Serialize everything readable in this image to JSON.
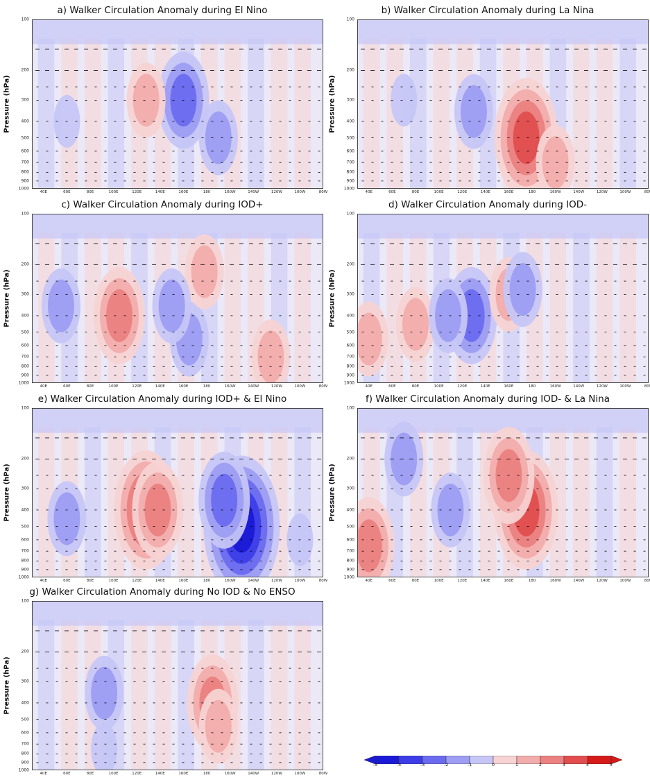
{
  "y_axis_label": "Pressure (hPa)",
  "pressure_ticks": [
    "100",
    "200",
    "300",
    "400",
    "500",
    "600",
    "700",
    "800",
    "900",
    "1000"
  ],
  "longitude_ticks": [
    "40E",
    "60E",
    "80E",
    "100E",
    "120E",
    "140E",
    "160E",
    "180",
    "160W",
    "140W",
    "120W",
    "100W",
    "80W"
  ],
  "colors": {
    "neg5": "#1a1ad6",
    "neg4": "#3d3de8",
    "neg3": "#6b6bef",
    "neg2": "#9d9df3",
    "neg1": "#c6c6f7",
    "zero": "#ebe8f7",
    "pos1": "#f7d3d3",
    "pos2": "#f2acac",
    "pos3": "#eb8181",
    "pos4": "#e24e4e",
    "pos5": "#d61a1a",
    "vector": "#000000"
  },
  "colorbar": {
    "labels": [
      "-5",
      "-4",
      "-3",
      "-2",
      "-1",
      "0",
      "1",
      "2",
      "3",
      "4",
      "5"
    ]
  },
  "chart_data": [
    {
      "type": "heatmap",
      "title": "a) Walker Circulation Anomaly during El Nino",
      "ylabel": "Pressure (hPa)",
      "xlabel": "",
      "x_range": [
        "30E",
        "80W"
      ],
      "y_range": [
        1000,
        100
      ],
      "y_scale": "log",
      "anomaly_regions": [
        {
          "sign": "neg",
          "level": 3,
          "lon_center": "160E",
          "pressure_center": 300,
          "note": "strong negative core"
        },
        {
          "sign": "neg",
          "level": 2,
          "lon_center": "170W",
          "pressure_center": 500
        },
        {
          "sign": "neg",
          "level": 1,
          "lon_center": "60E",
          "pressure_center": 400
        },
        {
          "sign": "pos",
          "level": 2,
          "lon_center": "128E",
          "pressure_center": 300
        }
      ]
    },
    {
      "type": "heatmap",
      "title": "b) Walker Circulation Anomaly during La Nina",
      "ylabel": "Pressure (hPa)",
      "xlabel": "",
      "x_range": [
        "30E",
        "80W"
      ],
      "y_range": [
        1000,
        100
      ],
      "y_scale": "log",
      "anomaly_regions": [
        {
          "sign": "pos",
          "level": 4,
          "lon_center": "175E",
          "pressure_center": 500,
          "note": "strong positive core"
        },
        {
          "sign": "pos",
          "level": 2,
          "lon_center": "160W",
          "pressure_center": 700
        },
        {
          "sign": "neg",
          "level": 2,
          "lon_center": "130E",
          "pressure_center": 350
        },
        {
          "sign": "neg",
          "level": 1,
          "lon_center": "70E",
          "pressure_center": 300
        }
      ]
    },
    {
      "type": "heatmap",
      "title": "c) Walker Circulation Anomaly during IOD+",
      "ylabel": "Pressure (hPa)",
      "xlabel": "",
      "x_range": [
        "30E",
        "80W"
      ],
      "y_range": [
        1000,
        100
      ],
      "y_scale": "log",
      "anomaly_regions": [
        {
          "sign": "neg",
          "level": 2,
          "lon_center": "55E",
          "pressure_center": 350
        },
        {
          "sign": "pos",
          "level": 3,
          "lon_center": "105E",
          "pressure_center": 400
        },
        {
          "sign": "neg",
          "level": 2,
          "lon_center": "165E",
          "pressure_center": 550
        },
        {
          "sign": "pos",
          "level": 2,
          "lon_center": "178E",
          "pressure_center": 220
        },
        {
          "sign": "neg",
          "level": 2,
          "lon_center": "150E",
          "pressure_center": 350
        },
        {
          "sign": "pos",
          "level": 2,
          "lon_center": "125W",
          "pressure_center": 700
        }
      ]
    },
    {
      "type": "heatmap",
      "title": "d) Walker Circulation Anomaly during IOD-",
      "ylabel": "Pressure (hPa)",
      "xlabel": "",
      "x_range": [
        "30E",
        "80W"
      ],
      "y_range": [
        1000,
        100
      ],
      "y_scale": "log",
      "anomaly_regions": [
        {
          "sign": "pos",
          "level": 2,
          "lon_center": "80E",
          "pressure_center": 450
        },
        {
          "sign": "pos",
          "level": 2,
          "lon_center": "40E",
          "pressure_center": 550
        },
        {
          "sign": "neg",
          "level": 3,
          "lon_center": "128E",
          "pressure_center": 400
        },
        {
          "sign": "neg",
          "level": 2,
          "lon_center": "108E",
          "pressure_center": 400
        },
        {
          "sign": "pos",
          "level": 2,
          "lon_center": "160E",
          "pressure_center": 300
        },
        {
          "sign": "neg",
          "level": 2,
          "lon_center": "172E",
          "pressure_center": 280
        }
      ]
    },
    {
      "type": "heatmap",
      "title": "e) Walker Circulation Anomaly during IOD+ & El Nino",
      "ylabel": "Pressure (hPa)",
      "xlabel": "",
      "x_range": [
        "30E",
        "80W"
      ],
      "y_range": [
        1000,
        100
      ],
      "y_scale": "log",
      "anomaly_regions": [
        {
          "sign": "neg",
          "level": 5,
          "lon_center": "150W",
          "pressure_center": 500,
          "note": "strongest negative core"
        },
        {
          "sign": "neg",
          "level": 3,
          "lon_center": "165W",
          "pressure_center": 350
        },
        {
          "sign": "pos",
          "level": 4,
          "lon_center": "128E",
          "pressure_center": 400
        },
        {
          "sign": "pos",
          "level": 3,
          "lon_center": "138E",
          "pressure_center": 400
        },
        {
          "sign": "neg",
          "level": 2,
          "lon_center": "60E",
          "pressure_center": 450
        },
        {
          "sign": "neg",
          "level": 1,
          "lon_center": "100W",
          "pressure_center": 600
        }
      ]
    },
    {
      "type": "heatmap",
      "title": "f) Walker Circulation Anomaly during IOD- & La Nina",
      "ylabel": "Pressure (hPa)",
      "xlabel": "",
      "x_range": [
        "30E",
        "80W"
      ],
      "y_range": [
        1000,
        100
      ],
      "y_scale": "log",
      "anomaly_regions": [
        {
          "sign": "pos",
          "level": 4,
          "lon_center": "175E",
          "pressure_center": 400,
          "note": "positive core"
        },
        {
          "sign": "pos",
          "level": 3,
          "lon_center": "160E",
          "pressure_center": 250
        },
        {
          "sign": "pos",
          "level": 3,
          "lon_center": "40E",
          "pressure_center": 650
        },
        {
          "sign": "neg",
          "level": 2,
          "lon_center": "110E",
          "pressure_center": 400
        },
        {
          "sign": "neg",
          "level": 2,
          "lon_center": "70E",
          "pressure_center": 200
        }
      ]
    },
    {
      "type": "heatmap",
      "title": "g) Walker Circulation Anomaly during No IOD & No ENSO",
      "ylabel": "Pressure (hPa)",
      "xlabel": "",
      "x_range": [
        "30E",
        "80W"
      ],
      "y_range": [
        1000,
        100
      ],
      "y_scale": "log",
      "anomaly_regions": [
        {
          "sign": "pos",
          "level": 3,
          "lon_center": "175W",
          "pressure_center": 400,
          "note": "positive core"
        },
        {
          "sign": "pos",
          "level": 2,
          "lon_center": "170W",
          "pressure_center": 550
        },
        {
          "sign": "neg",
          "level": 2,
          "lon_center": "92E",
          "pressure_center": 350
        },
        {
          "sign": "neg",
          "level": 1,
          "lon_center": "92E",
          "pressure_center": 750
        }
      ]
    }
  ]
}
